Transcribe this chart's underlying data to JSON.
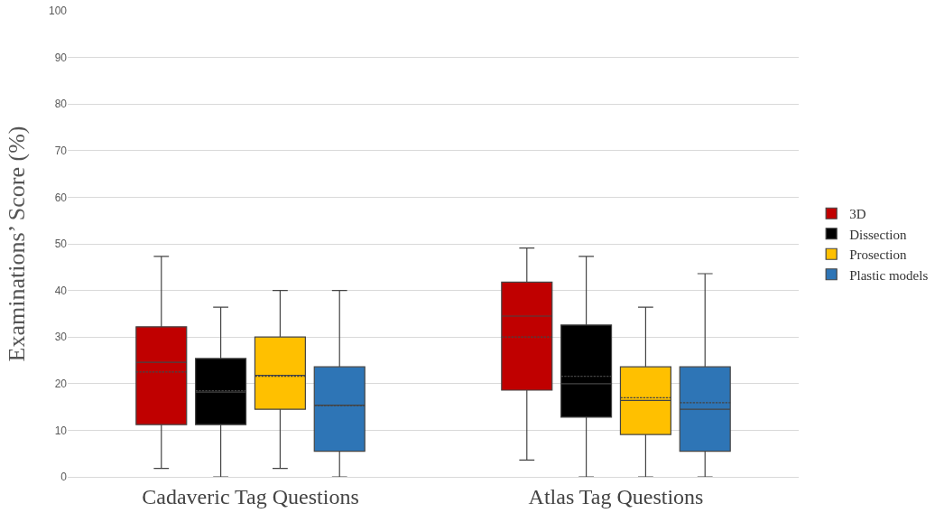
{
  "chart_data": {
    "type": "box",
    "ylabel": "Examinations’ Score (%)",
    "categories": [
      "Cadaveric Tag Questions",
      "Atlas Tag Questions"
    ],
    "ylim": [
      0,
      100
    ],
    "yticks": [
      0,
      10,
      20,
      30,
      40,
      50,
      60,
      70,
      80,
      90,
      100
    ],
    "grid": "y",
    "legend": "right",
    "series": [
      {
        "name": "3D",
        "color": "#c00000",
        "boxes": [
          {
            "low": 1.8,
            "q1": 11.2,
            "median": 24.6,
            "q3": 32.2,
            "high": 47.3,
            "mean": 22.5
          },
          {
            "low": 3.6,
            "q1": 18.6,
            "median": 34.5,
            "q3": 41.8,
            "high": 49.1,
            "mean": 30
          }
        ]
      },
      {
        "name": "Dissection",
        "color": "#000000",
        "boxes": [
          {
            "low": 0,
            "q1": 11.2,
            "median": 18.2,
            "q3": 25.4,
            "high": 36.4,
            "mean": 18.5
          },
          {
            "low": 0,
            "q1": 12.8,
            "median": 20,
            "q3": 32.6,
            "high": 47.3,
            "mean": 21.6
          }
        ]
      },
      {
        "name": "Prosection",
        "color": "#ffc000",
        "boxes": [
          {
            "low": 1.8,
            "q1": 14.5,
            "median": 21.8,
            "q3": 30,
            "high": 40,
            "mean": 21.6
          },
          {
            "low": 0,
            "q1": 9.1,
            "median": 16.4,
            "q3": 23.6,
            "high": 36.4,
            "mean": 17
          }
        ]
      },
      {
        "name": "Plastic models",
        "color": "#2e75b6",
        "boxes": [
          {
            "low": 0,
            "q1": 5.5,
            "median": 15.4,
            "q3": 23.6,
            "high": 40,
            "mean": 15.3
          },
          {
            "low": 0,
            "q1": 5.5,
            "median": 14.5,
            "q3": 23.6,
            "high": 43.6,
            "mean": 15.9
          }
        ]
      }
    ]
  }
}
